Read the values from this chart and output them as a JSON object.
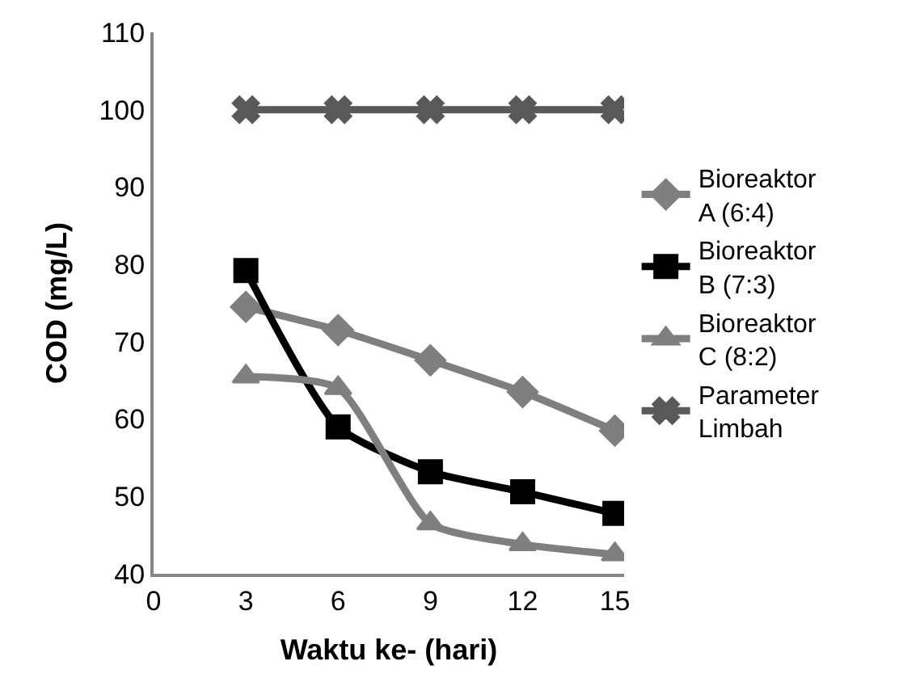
{
  "chart_data": {
    "type": "line",
    "xlabel": "Waktu ke- (hari)",
    "ylabel": "COD (mg/L)",
    "x": [
      3,
      6,
      9,
      12,
      15
    ],
    "series": [
      {
        "name": "Bioreaktor A (6:4)",
        "color": "#7f7f7f",
        "marker": "diamond",
        "values": [
          74.5,
          71.5,
          67.6,
          63.5,
          58.5
        ]
      },
      {
        "name": "Bioreaktor B (7:3)",
        "color": "#000000",
        "marker": "square",
        "values": [
          79.2,
          59,
          53.2,
          50.6,
          47.8
        ]
      },
      {
        "name": "Bioreaktor C (8:2)",
        "color": "#7f7f7f",
        "marker": "triangle",
        "values": [
          65.5,
          64,
          46.5,
          43.8,
          42.5
        ]
      },
      {
        "name": "Parameter Limbah",
        "color": "#595959",
        "marker": "cross",
        "values": [
          100,
          100,
          100,
          100,
          100
        ]
      }
    ],
    "xlim": [
      0,
      15.3
    ],
    "xticks": [
      0,
      3,
      6,
      9,
      12,
      15
    ],
    "ylim": [
      40,
      110
    ],
    "yticks": [
      40,
      50,
      60,
      70,
      80,
      90,
      100,
      110
    ],
    "legend": "right"
  }
}
